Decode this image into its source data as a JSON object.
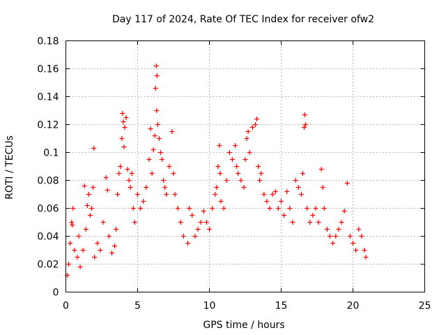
{
  "chart_data": {
    "type": "scatter",
    "title": "Day 117 of 2024, Rate Of TEC Index for receiver ofw2",
    "xlabel": "GPS time / hours",
    "ylabel": "ROTI / TECUs",
    "xlim": [
      0,
      25
    ],
    "ylim": [
      0,
      0.18
    ],
    "x_ticks": [
      0,
      5,
      10,
      15,
      20,
      25
    ],
    "x_tick_labels": [
      "0",
      "5",
      "10",
      "15",
      "20",
      "25"
    ],
    "y_ticks": [
      0,
      0.02,
      0.04,
      0.06,
      0.08,
      0.1,
      0.12,
      0.14,
      0.16,
      0.18
    ],
    "y_tick_labels": [
      "0",
      "0.02",
      "0.04",
      "0.06",
      "0.08",
      "0.1",
      "0.12",
      "0.14",
      "0.16",
      "0.18"
    ],
    "grid": true,
    "marker": "+",
    "color": "#ff0000",
    "series": [
      {
        "points": [
          [
            0.1,
            0.012
          ],
          [
            0.2,
            0.02
          ],
          [
            0.3,
            0.035
          ],
          [
            0.4,
            0.05
          ],
          [
            0.5,
            0.06
          ],
          [
            0.45,
            0.048
          ],
          [
            0.6,
            0.03
          ],
          [
            0.8,
            0.025
          ],
          [
            0.9,
            0.04
          ],
          [
            1.0,
            0.018
          ],
          [
            1.2,
            0.03
          ],
          [
            1.3,
            0.076
          ],
          [
            1.4,
            0.045
          ],
          [
            1.5,
            0.062
          ],
          [
            1.6,
            0.07
          ],
          [
            1.7,
            0.055
          ],
          [
            1.8,
            0.06
          ],
          [
            1.9,
            0.075
          ],
          [
            1.95,
            0.103
          ],
          [
            2.0,
            0.025
          ],
          [
            2.2,
            0.035
          ],
          [
            2.4,
            0.03
          ],
          [
            2.6,
            0.05
          ],
          [
            2.8,
            0.082
          ],
          [
            2.9,
            0.073
          ],
          [
            3.0,
            0.04
          ],
          [
            3.2,
            0.028
          ],
          [
            3.4,
            0.033
          ],
          [
            3.5,
            0.045
          ],
          [
            3.6,
            0.07
          ],
          [
            3.7,
            0.085
          ],
          [
            3.8,
            0.09
          ],
          [
            3.9,
            0.11
          ],
          [
            3.95,
            0.128
          ],
          [
            4.0,
            0.122
          ],
          [
            4.05,
            0.104
          ],
          [
            4.1,
            0.118
          ],
          [
            4.2,
            0.125
          ],
          [
            4.3,
            0.088
          ],
          [
            4.4,
            0.08
          ],
          [
            4.5,
            0.075
          ],
          [
            4.6,
            0.085
          ],
          [
            4.7,
            0.06
          ],
          [
            4.8,
            0.05
          ],
          [
            5.0,
            0.07
          ],
          [
            5.2,
            0.06
          ],
          [
            5.4,
            0.065
          ],
          [
            5.6,
            0.075
          ],
          [
            5.8,
            0.095
          ],
          [
            5.9,
            0.117
          ],
          [
            6.0,
            0.085
          ],
          [
            6.1,
            0.102
          ],
          [
            6.2,
            0.112
          ],
          [
            6.25,
            0.146
          ],
          [
            6.3,
            0.162
          ],
          [
            6.35,
            0.155
          ],
          [
            6.32,
            0.13
          ],
          [
            6.4,
            0.12
          ],
          [
            6.5,
            0.11
          ],
          [
            6.6,
            0.1
          ],
          [
            6.7,
            0.095
          ],
          [
            6.8,
            0.08
          ],
          [
            6.9,
            0.075
          ],
          [
            7.0,
            0.07
          ],
          [
            7.2,
            0.09
          ],
          [
            7.4,
            0.115
          ],
          [
            7.5,
            0.085
          ],
          [
            7.6,
            0.07
          ],
          [
            7.8,
            0.06
          ],
          [
            8.0,
            0.05
          ],
          [
            8.2,
            0.04
          ],
          [
            8.5,
            0.035
          ],
          [
            8.6,
            0.06
          ],
          [
            8.8,
            0.055
          ],
          [
            9.0,
            0.04
          ],
          [
            9.2,
            0.045
          ],
          [
            9.4,
            0.05
          ],
          [
            9.6,
            0.058
          ],
          [
            9.8,
            0.05
          ],
          [
            10.0,
            0.045
          ],
          [
            10.2,
            0.06
          ],
          [
            10.4,
            0.07
          ],
          [
            10.5,
            0.075
          ],
          [
            10.6,
            0.09
          ],
          [
            10.7,
            0.105
          ],
          [
            10.75,
            0.085
          ],
          [
            10.8,
            0.065
          ],
          [
            11.0,
            0.06
          ],
          [
            11.2,
            0.08
          ],
          [
            11.4,
            0.1
          ],
          [
            11.6,
            0.095
          ],
          [
            11.8,
            0.105
          ],
          [
            11.9,
            0.09
          ],
          [
            12.0,
            0.085
          ],
          [
            12.2,
            0.08
          ],
          [
            12.4,
            0.075
          ],
          [
            12.5,
            0.095
          ],
          [
            12.6,
            0.11
          ],
          [
            12.7,
            0.115
          ],
          [
            12.8,
            0.1
          ],
          [
            13.0,
            0.118
          ],
          [
            13.2,
            0.12
          ],
          [
            13.3,
            0.124
          ],
          [
            13.4,
            0.09
          ],
          [
            13.5,
            0.08
          ],
          [
            13.6,
            0.085
          ],
          [
            13.8,
            0.07
          ],
          [
            14.0,
            0.065
          ],
          [
            14.2,
            0.06
          ],
          [
            14.4,
            0.07
          ],
          [
            14.6,
            0.072
          ],
          [
            14.8,
            0.06
          ],
          [
            15.0,
            0.065
          ],
          [
            15.2,
            0.055
          ],
          [
            15.4,
            0.072
          ],
          [
            15.6,
            0.06
          ],
          [
            15.8,
            0.05
          ],
          [
            16.0,
            0.08
          ],
          [
            16.2,
            0.075
          ],
          [
            16.4,
            0.07
          ],
          [
            16.5,
            0.085
          ],
          [
            16.6,
            0.118
          ],
          [
            16.65,
            0.127
          ],
          [
            16.7,
            0.12
          ],
          [
            16.8,
            0.06
          ],
          [
            17.0,
            0.05
          ],
          [
            17.2,
            0.055
          ],
          [
            17.4,
            0.06
          ],
          [
            17.6,
            0.05
          ],
          [
            17.8,
            0.088
          ],
          [
            17.9,
            0.075
          ],
          [
            18.0,
            0.06
          ],
          [
            18.2,
            0.045
          ],
          [
            18.4,
            0.04
          ],
          [
            18.6,
            0.035
          ],
          [
            18.8,
            0.04
          ],
          [
            19.0,
            0.045
          ],
          [
            19.2,
            0.05
          ],
          [
            19.4,
            0.058
          ],
          [
            19.6,
            0.078
          ],
          [
            19.8,
            0.04
          ],
          [
            20.0,
            0.035
          ],
          [
            20.2,
            0.03
          ],
          [
            20.4,
            0.045
          ],
          [
            20.6,
            0.04
          ],
          [
            20.8,
            0.03
          ],
          [
            20.9,
            0.025
          ]
        ]
      }
    ]
  }
}
